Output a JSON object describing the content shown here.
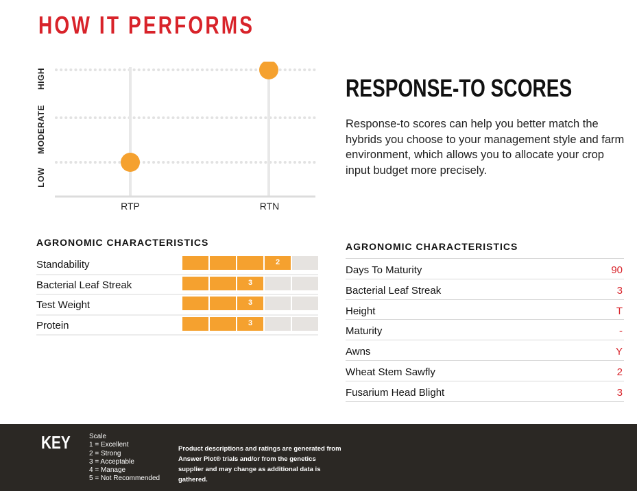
{
  "title": "HOW IT PERFORMS",
  "chart_data": {
    "type": "scatter",
    "categories": [
      "RTP",
      "RTN"
    ],
    "y_levels": [
      "LOW",
      "MODERATE",
      "HIGH"
    ],
    "values": [
      "LOW",
      "HIGH"
    ],
    "point_color": "#f5a12f",
    "grid": true
  },
  "response": {
    "title": "RESPONSE-TO SCORES",
    "body": "Response-to scores can help you better match the hybrids you choose to your management style and farm environment, which allows you to allocate your crop input budget more precisely."
  },
  "left_table": {
    "heading": "AGRONOMIC CHARACTERISTICS",
    "rows": [
      {
        "label": "Standability",
        "score": 2
      },
      {
        "label": "Bacterial Leaf Streak",
        "score": 3
      },
      {
        "label": "Test Weight",
        "score": 3
      },
      {
        "label": "Protein",
        "score": 3
      }
    ],
    "bar_color": "#f5a12f",
    "empty_color": "#e6e3e0"
  },
  "right_table": {
    "heading": "AGRONOMIC CHARACTERISTICS",
    "rows": [
      {
        "label": "Days To Maturity",
        "value": "90"
      },
      {
        "label": "Bacterial Leaf Streak",
        "value": "3"
      },
      {
        "label": "Height",
        "value": "T"
      },
      {
        "label": "Maturity",
        "value": "-"
      },
      {
        "label": "Awns",
        "value": "Y"
      },
      {
        "label": "Wheat Stem Sawfly",
        "value": "2"
      },
      {
        "label": "Fusarium Head Blight",
        "value": "3"
      }
    ],
    "value_color": "#d8232a"
  },
  "key": {
    "title": "KEY",
    "scale_label": "Scale",
    "scale_items": [
      "1 = Excellent",
      "2 = Strong",
      "3 = Acceptable",
      "4 = Manage",
      "5 = Not Recommended"
    ],
    "disclaimer": "Product descriptions and ratings are generated from Answer Plot® trials and/or from the genetics supplier and may change as additional data is gathered."
  }
}
